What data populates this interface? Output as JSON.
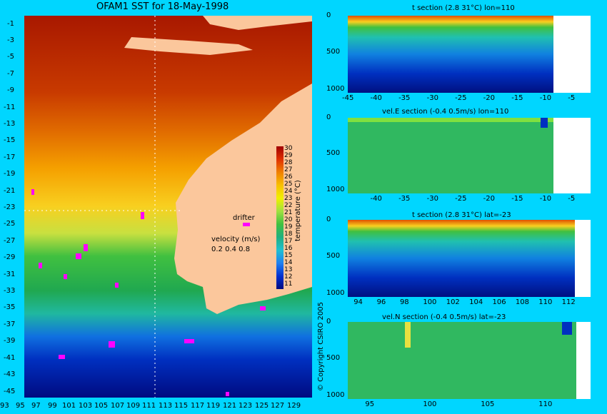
{
  "main_title": "OFAM1 SST for 18-May-1998",
  "copyright": "© Copyright CSIRO 2005",
  "map": {
    "lat_ticks": [
      "-1",
      "-3",
      "-5",
      "-7",
      "-9",
      "-11",
      "-13",
      "-15",
      "-17",
      "-19",
      "-21",
      "-23",
      "-25",
      "-27",
      "-29",
      "-31",
      "-33",
      "-35",
      "-37",
      "-39",
      "-41",
      "-43",
      "-45"
    ],
    "lon_ticks": [
      "93",
      "95",
      "97",
      "99",
      "101",
      "103",
      "105",
      "107",
      "109",
      "111",
      "113",
      "115",
      "117",
      "119",
      "121",
      "123",
      "125",
      "127",
      "129"
    ],
    "drifter_label": "drifter",
    "velocity_label": "velocity (m/s)",
    "velocity_scale": "0.2 0.4 0.8",
    "colorbar_label": "temperature (°C)",
    "colorbar_ticks": [
      "30",
      "29",
      "28",
      "27",
      "26",
      "25",
      "24",
      "23",
      "22",
      "21",
      "20",
      "19",
      "18",
      "17",
      "16",
      "15",
      "14",
      "13",
      "12",
      "11"
    ],
    "colors": {
      "land": "#fbc79c",
      "warm": "#b02000",
      "cool": "#001090",
      "drifter": "#ff00ff"
    }
  },
  "chart_data": [
    {
      "type": "heatmap",
      "title": "t section (2.8     31°C) lon=110",
      "x_ticks": [
        "-45",
        "-40",
        "-35",
        "-30",
        "-25",
        "-20",
        "-15",
        "-10",
        "-5"
      ],
      "y_ticks": [
        "0",
        "500",
        "1000"
      ],
      "xlim": [
        -45,
        -2
      ],
      "ylim": [
        1050,
        0
      ]
    },
    {
      "type": "heatmap",
      "title": "vel.E section (-0.4     0.5m/s) lon=110",
      "x_ticks": [
        "-40",
        "-35",
        "-30",
        "-25",
        "-20",
        "-15",
        "-10",
        "-5"
      ],
      "y_ticks": [
        "0",
        "500",
        "1000"
      ],
      "xlim": [
        -45,
        -2
      ],
      "ylim": [
        1050,
        0
      ]
    },
    {
      "type": "heatmap",
      "title": "t section (2.8     31°C) lat=-23",
      "x_ticks": [
        "94",
        "96",
        "98",
        "100",
        "102",
        "104",
        "106",
        "108",
        "110",
        "112"
      ],
      "y_ticks": [
        "0",
        "500",
        "1000"
      ],
      "xlim": [
        93,
        114
      ],
      "ylim": [
        1050,
        0
      ]
    },
    {
      "type": "heatmap",
      "title": "vel.N section (-0.4     0.5m/s) lat=-23",
      "x_ticks": [
        "95",
        "100",
        "105",
        "110"
      ],
      "y_ticks": [
        "0",
        "500",
        "1000"
      ],
      "xlim": [
        93,
        114
      ],
      "ylim": [
        1050,
        0
      ]
    }
  ]
}
